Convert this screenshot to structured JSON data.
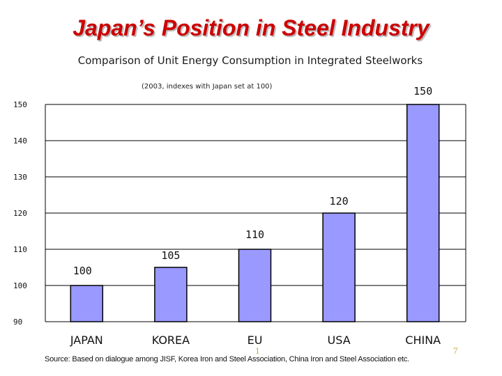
{
  "slide": {
    "title": "Japan’s Position in Steel Industry",
    "subtitle": "Comparison of Unit Energy Consumption in Integrated Steelworks",
    "note": "(2003, indexes with Japan set at 100)",
    "source": "Source: Based on dialogue among JISF, Korea Iron and Steel Association, China Iron and Steel Association etc.",
    "page_mark_left": "1",
    "page_mark_right": "7"
  },
  "colors": {
    "title": "#cc0000",
    "bar_fill": "#9999ff",
    "bar_stroke": "#000000",
    "gridline": "#000000",
    "page_mark": "#c8a23c"
  },
  "chart_data": {
    "type": "bar",
    "title": "Comparison of Unit Energy Consumption in Integrated Steelworks",
    "xlabel": "",
    "ylabel": "",
    "categories": [
      "JAPAN",
      "KOREA",
      "EU",
      "USA",
      "CHINA"
    ],
    "values": [
      100,
      105,
      110,
      120,
      150
    ],
    "data_labels": [
      "100",
      "105",
      "110",
      "120",
      "150"
    ],
    "ylim": [
      90,
      150
    ],
    "yticks": [
      90,
      100,
      110,
      120,
      130,
      140,
      150
    ],
    "grid": true,
    "legend": "none"
  }
}
